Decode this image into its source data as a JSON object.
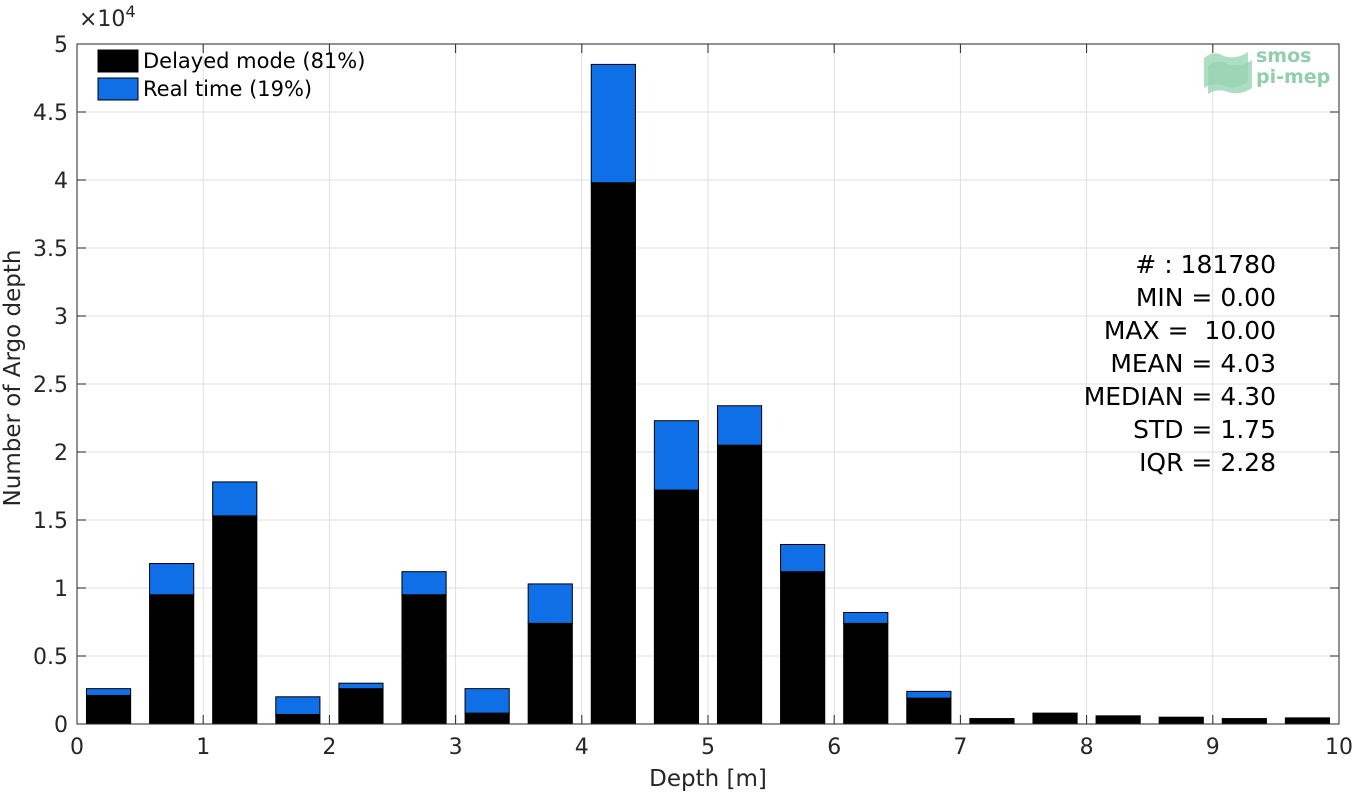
{
  "chart_data": {
    "type": "bar",
    "stacked": true,
    "xlabel": "Depth [m]",
    "ylabel": "Number of Argo depth",
    "y_exponent_label": "×10",
    "y_exponent_power": "4",
    "y_multiplier": 10000,
    "xlim": [
      0,
      10
    ],
    "ylim": [
      0,
      5
    ],
    "xticks": [
      "0",
      "1",
      "2",
      "3",
      "4",
      "5",
      "6",
      "7",
      "8",
      "9",
      "10"
    ],
    "yticks": [
      "0",
      "0.5",
      "1",
      "1.5",
      "2",
      "2.5",
      "3",
      "3.5",
      "4",
      "4.5",
      "5"
    ],
    "grid": true,
    "legend_position": "top-left",
    "bin_width": 0.5,
    "bin_centers": [
      0.25,
      0.75,
      1.25,
      1.75,
      2.25,
      2.75,
      3.25,
      3.75,
      4.25,
      4.75,
      5.25,
      5.75,
      6.25,
      6.75,
      7.25,
      7.75,
      8.25,
      8.75,
      9.25,
      9.75
    ],
    "series": [
      {
        "name": "Delayed mode (81%)",
        "color": "#000000",
        "values": [
          0.21,
          0.95,
          1.53,
          0.07,
          0.26,
          0.95,
          0.08,
          0.74,
          3.98,
          1.72,
          2.05,
          1.12,
          0.74,
          0.19,
          0.04,
          0.08,
          0.06,
          0.05,
          0.04,
          0.045
        ]
      },
      {
        "name": "Real time (19%)",
        "color": "#0f6fe6",
        "values": [
          0.05,
          0.23,
          0.25,
          0.13,
          0.04,
          0.17,
          0.18,
          0.29,
          0.87,
          0.51,
          0.29,
          0.2,
          0.08,
          0.05,
          0,
          0,
          0,
          0,
          0,
          0
        ]
      }
    ],
    "annotations": [
      "# : 181780",
      "MIN = 0.00",
      "MAX =  10.00",
      "MEAN = 4.03",
      "MEDIAN = 4.30",
      "STD = 1.75",
      "IQR = 2.28"
    ]
  },
  "watermark": {
    "line1": "smos",
    "line2": "pi-mep",
    "color": "#86c9a4"
  }
}
